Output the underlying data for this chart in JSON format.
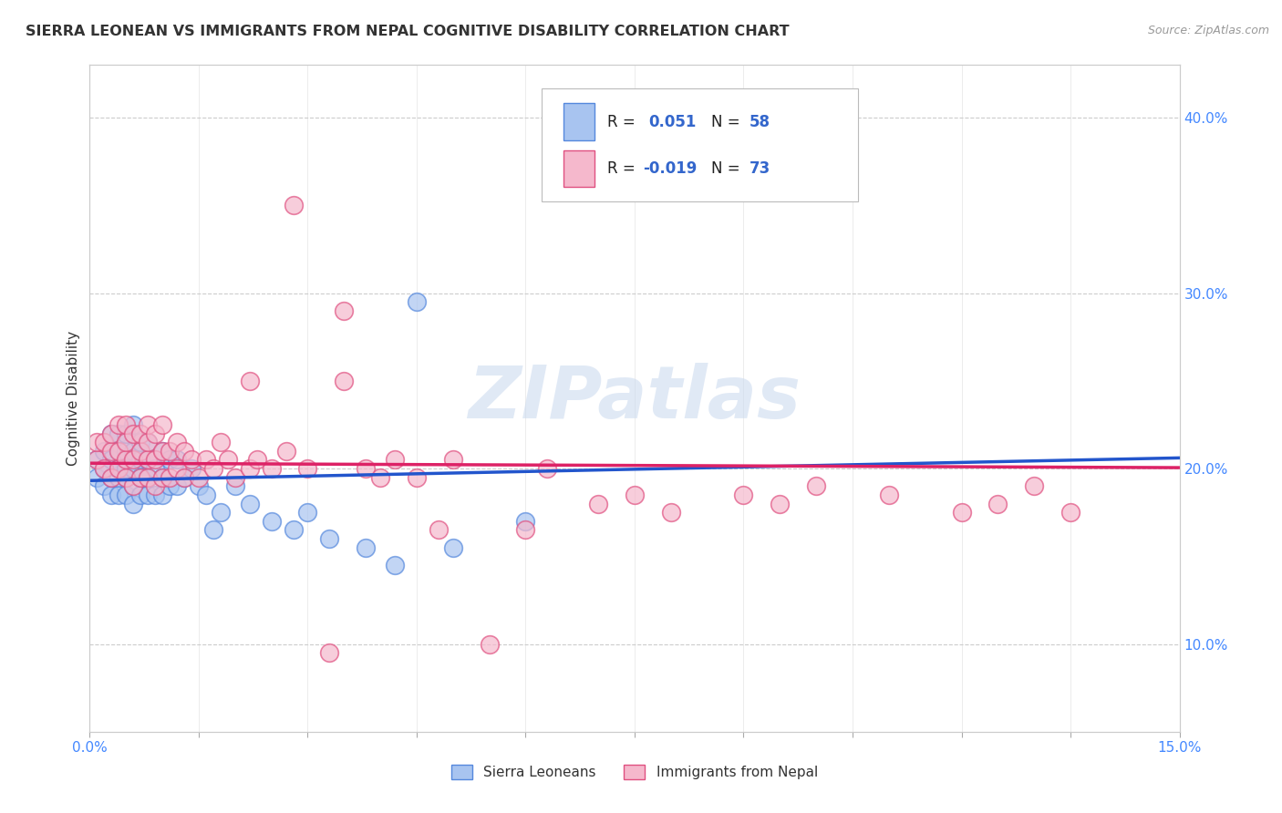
{
  "title": "SIERRA LEONEAN VS IMMIGRANTS FROM NEPAL COGNITIVE DISABILITY CORRELATION CHART",
  "source": "Source: ZipAtlas.com",
  "ylabel": "Cognitive Disability",
  "xlim": [
    0.0,
    0.15
  ],
  "ylim": [
    0.05,
    0.43
  ],
  "yticks": [
    0.1,
    0.2,
    0.3,
    0.4
  ],
  "ytick_labels": [
    "10.0%",
    "20.0%",
    "30.0%",
    "40.0%"
  ],
  "xticks": [
    0.0,
    0.015,
    0.03,
    0.045,
    0.06,
    0.075,
    0.09,
    0.105,
    0.12,
    0.135,
    0.15
  ],
  "xtick_labels_show": [
    "0.0%",
    "15.0%"
  ],
  "series1_name": "Sierra Leoneans",
  "series1_R": 0.051,
  "series1_N": 58,
  "series1_color": "#a8c4f0",
  "series1_edge_color": "#5588dd",
  "series2_name": "Immigrants from Nepal",
  "series2_R": -0.019,
  "series2_N": 73,
  "series2_color": "#f5b8cc",
  "series2_edge_color": "#e05080",
  "trend1_color": "#2255cc",
  "trend2_color": "#dd2266",
  "watermark": "ZIPatlas",
  "background_color": "#ffffff",
  "grid_color": "#cccccc",
  "series1_x": [
    0.001,
    0.001,
    0.002,
    0.002,
    0.002,
    0.003,
    0.003,
    0.003,
    0.003,
    0.004,
    0.004,
    0.004,
    0.004,
    0.004,
    0.005,
    0.005,
    0.005,
    0.005,
    0.005,
    0.006,
    0.006,
    0.006,
    0.006,
    0.006,
    0.007,
    0.007,
    0.007,
    0.007,
    0.008,
    0.008,
    0.008,
    0.008,
    0.009,
    0.009,
    0.01,
    0.01,
    0.01,
    0.011,
    0.011,
    0.012,
    0.012,
    0.013,
    0.014,
    0.015,
    0.016,
    0.017,
    0.018,
    0.02,
    0.022,
    0.025,
    0.028,
    0.03,
    0.033,
    0.038,
    0.042,
    0.045,
    0.05,
    0.06
  ],
  "series1_y": [
    0.195,
    0.205,
    0.19,
    0.2,
    0.21,
    0.185,
    0.195,
    0.205,
    0.22,
    0.185,
    0.195,
    0.2,
    0.21,
    0.22,
    0.185,
    0.195,
    0.2,
    0.21,
    0.22,
    0.18,
    0.19,
    0.2,
    0.21,
    0.225,
    0.185,
    0.195,
    0.205,
    0.215,
    0.185,
    0.195,
    0.205,
    0.215,
    0.185,
    0.2,
    0.185,
    0.195,
    0.21,
    0.19,
    0.205,
    0.19,
    0.205,
    0.195,
    0.2,
    0.19,
    0.185,
    0.165,
    0.175,
    0.19,
    0.18,
    0.17,
    0.165,
    0.175,
    0.16,
    0.155,
    0.145,
    0.295,
    0.155,
    0.17
  ],
  "series2_x": [
    0.001,
    0.001,
    0.002,
    0.002,
    0.003,
    0.003,
    0.003,
    0.004,
    0.004,
    0.004,
    0.005,
    0.005,
    0.005,
    0.005,
    0.006,
    0.006,
    0.006,
    0.007,
    0.007,
    0.007,
    0.008,
    0.008,
    0.008,
    0.008,
    0.009,
    0.009,
    0.009,
    0.01,
    0.01,
    0.01,
    0.011,
    0.011,
    0.012,
    0.012,
    0.013,
    0.013,
    0.014,
    0.015,
    0.016,
    0.017,
    0.018,
    0.019,
    0.02,
    0.022,
    0.023,
    0.025,
    0.027,
    0.03,
    0.033,
    0.035,
    0.038,
    0.04,
    0.042,
    0.045,
    0.048,
    0.05,
    0.055,
    0.06,
    0.063,
    0.07,
    0.075,
    0.08,
    0.09,
    0.095,
    0.1,
    0.11,
    0.12,
    0.125,
    0.13,
    0.135,
    0.035,
    0.028,
    0.022
  ],
  "series2_y": [
    0.205,
    0.215,
    0.2,
    0.215,
    0.195,
    0.21,
    0.22,
    0.2,
    0.21,
    0.225,
    0.195,
    0.205,
    0.215,
    0.225,
    0.19,
    0.205,
    0.22,
    0.195,
    0.21,
    0.22,
    0.195,
    0.205,
    0.215,
    0.225,
    0.19,
    0.205,
    0.22,
    0.195,
    0.21,
    0.225,
    0.195,
    0.21,
    0.2,
    0.215,
    0.195,
    0.21,
    0.205,
    0.195,
    0.205,
    0.2,
    0.215,
    0.205,
    0.195,
    0.2,
    0.205,
    0.2,
    0.21,
    0.2,
    0.095,
    0.25,
    0.2,
    0.195,
    0.205,
    0.195,
    0.165,
    0.205,
    0.1,
    0.165,
    0.2,
    0.18,
    0.185,
    0.175,
    0.185,
    0.18,
    0.19,
    0.185,
    0.175,
    0.18,
    0.19,
    0.175,
    0.29,
    0.35,
    0.25
  ]
}
